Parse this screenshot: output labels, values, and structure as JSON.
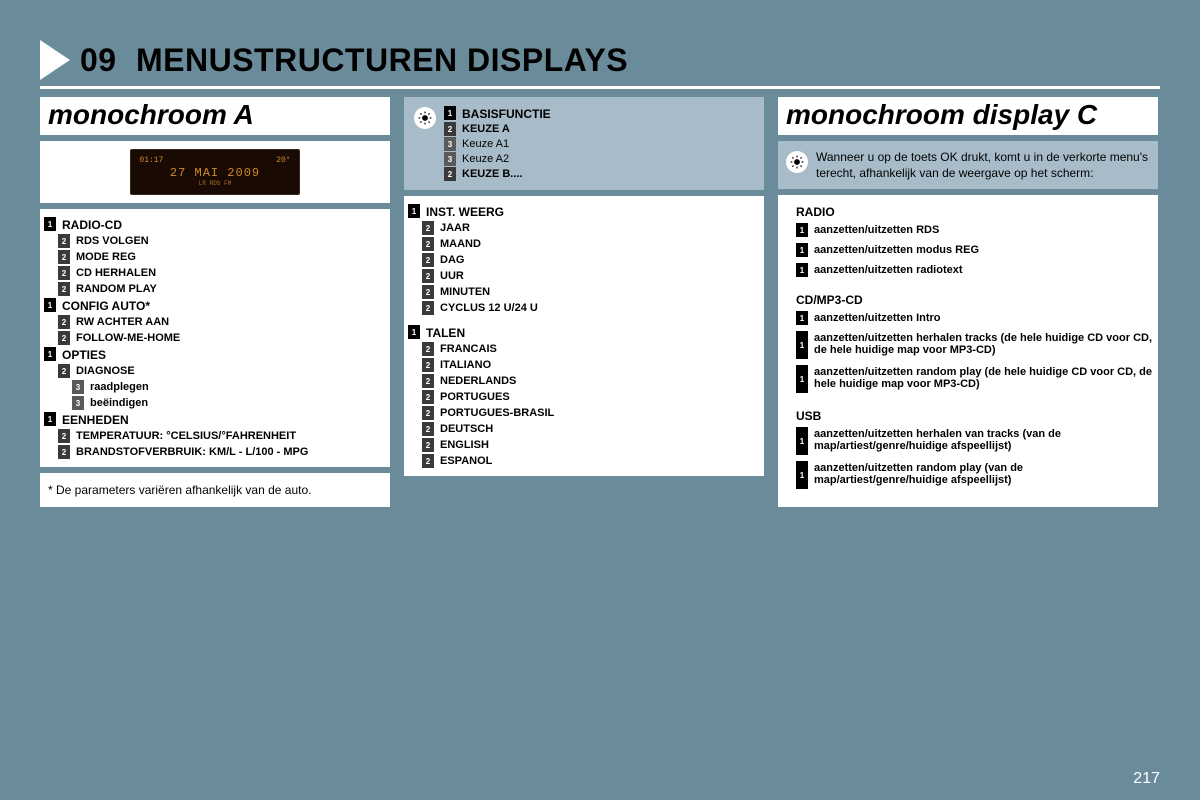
{
  "pageNumber": "217",
  "heading": {
    "number": "09",
    "title": "MENUSTRUCTUREN DISPLAYS"
  },
  "colors": {
    "pageBg": "#6a8b9a",
    "paneBg": "#ffffff",
    "legendBg": "#a7bcc8",
    "badge1": "#000000",
    "badge2": "#3a3a3a",
    "badge3": "#5a5a5a",
    "displayBg": "#1a0a04",
    "displayText": "#d08a2a"
  },
  "columnA": {
    "title": "monochroom A",
    "display": {
      "time": "01:17",
      "temp": "20°",
      "date": "27 MAI 2009",
      "sub": "LR   RDS  FM"
    },
    "items": [
      {
        "level": 1,
        "label": "RADIO-CD"
      },
      {
        "level": 2,
        "label": "RDS VOLGEN"
      },
      {
        "level": 2,
        "label": "MODE REG"
      },
      {
        "level": 2,
        "label": "CD HERHALEN"
      },
      {
        "level": 2,
        "label": "RANDOM PLAY"
      },
      {
        "level": 1,
        "label": "CONFIG AUTO*"
      },
      {
        "level": 2,
        "label": "RW ACHTER AAN"
      },
      {
        "level": 2,
        "label": "FOLLOW-ME-HOME"
      },
      {
        "level": 1,
        "label": "OPTIES"
      },
      {
        "level": 2,
        "label": "DIAGNOSE"
      },
      {
        "level": 3,
        "label": "raadplegen"
      },
      {
        "level": 3,
        "label": "beëindigen"
      },
      {
        "level": 1,
        "label": "EENHEDEN"
      },
      {
        "level": 2,
        "label": "TEMPERATUUR: °CELSIUS/°FAHRENHEIT"
      },
      {
        "level": 2,
        "label": "BRANDSTOFVERBRUIK: KM/L - L/100 - MPG"
      }
    ],
    "footnote": "* De parameters variëren afhankelijk van de auto."
  },
  "columnB": {
    "legend": [
      {
        "level": 1,
        "label": "BASISFUNCTIE"
      },
      {
        "level": 2,
        "label": "KEUZE A"
      },
      {
        "level": 3,
        "label": "Keuze A1"
      },
      {
        "level": 3,
        "label": "Keuze A2"
      },
      {
        "level": 2,
        "label": "KEUZE B...."
      }
    ],
    "items": [
      {
        "level": 1,
        "label": "INST. WEERG"
      },
      {
        "level": 2,
        "label": "JAAR"
      },
      {
        "level": 2,
        "label": "MAAND"
      },
      {
        "level": 2,
        "label": "DAG"
      },
      {
        "level": 2,
        "label": "UUR"
      },
      {
        "level": 2,
        "label": "MINUTEN"
      },
      {
        "level": 2,
        "label": "CYCLUS 12 U/24 U"
      },
      {
        "spacer": true
      },
      {
        "level": 1,
        "label": "TALEN"
      },
      {
        "level": 2,
        "label": "FRANCAIS"
      },
      {
        "level": 2,
        "label": "ITALIANO"
      },
      {
        "level": 2,
        "label": "NEDERLANDS"
      },
      {
        "level": 2,
        "label": "PORTUGUES"
      },
      {
        "level": 2,
        "label": "PORTUGUES-BRASIL"
      },
      {
        "level": 2,
        "label": "DEUTSCH"
      },
      {
        "level": 2,
        "label": "ENGLISH"
      },
      {
        "level": 2,
        "label": "ESPANOL"
      }
    ]
  },
  "columnC": {
    "title": "monochroom display C",
    "infoText": "Wanneer u op de toets OK drukt, komt u in de verkorte menu's terecht, afhankelijk van de weergave op het scherm:",
    "sections": [
      {
        "heading": "RADIO",
        "items": [
          {
            "label": "aanzetten/uitzetten RDS",
            "tall": false
          },
          {
            "label": "aanzetten/uitzetten modus REG",
            "tall": false
          },
          {
            "label": "aanzetten/uitzetten radiotext",
            "tall": false
          }
        ]
      },
      {
        "heading": "CD/MP3-CD",
        "items": [
          {
            "label": "aanzetten/uitzetten Intro",
            "tall": false
          },
          {
            "label": "aanzetten/uitzetten herhalen tracks (de hele huidige CD voor CD, de hele huidige map voor MP3-CD)",
            "tall": true
          },
          {
            "label": "aanzetten/uitzetten random play (de hele huidige CD voor CD, de hele huidige map voor MP3-CD)",
            "tall": true
          }
        ]
      },
      {
        "heading": "USB",
        "items": [
          {
            "label": "aanzetten/uitzetten herhalen van tracks (van de map/artiest/genre/huidige afspeellijst)",
            "tall": true
          },
          {
            "label": "aanzetten/uitzetten random play (van de map/artiest/genre/huidige afspeellijst)",
            "tall": true
          }
        ]
      }
    ]
  }
}
